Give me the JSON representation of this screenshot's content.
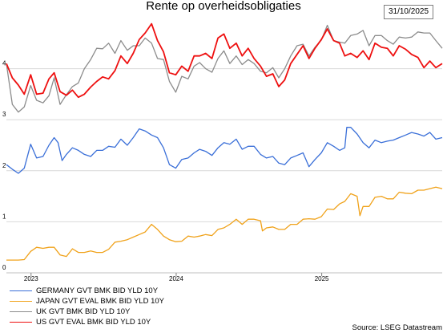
{
  "chart_data": {
    "type": "line",
    "title": "Rente op overheidsobligaties",
    "date_label": "31/10/2025",
    "source": "Source: LSEG Datastream",
    "xlabel": "",
    "ylabel": "",
    "x_ticks": [
      {
        "label": "2023",
        "x": "2023-01-01"
      },
      {
        "label": "2024",
        "x": "2024-01-01"
      },
      {
        "label": "2025",
        "x": "2025-01-01"
      }
    ],
    "xlim": [
      "2022-10-31",
      "2025-10-31"
    ],
    "ylim": [
      0,
      5.0
    ],
    "y_ticks": [
      0,
      1,
      2,
      3,
      4
    ],
    "legend_position": "bottom-left",
    "grid": "horizontal",
    "series": [
      {
        "name": "GERMANY GVT BMK BID YLD 10Y",
        "color": "#3a6fd8",
        "x": [
          "2022-10-31",
          "2022-11-15",
          "2022-11-30",
          "2022-12-15",
          "2022-12-31",
          "2023-01-15",
          "2023-01-31",
          "2023-02-15",
          "2023-02-28",
          "2023-03-10",
          "2023-03-20",
          "2023-03-31",
          "2023-04-15",
          "2023-04-30",
          "2023-05-15",
          "2023-05-31",
          "2023-06-15",
          "2023-06-30",
          "2023-07-15",
          "2023-07-31",
          "2023-08-15",
          "2023-08-31",
          "2023-09-15",
          "2023-09-30",
          "2023-10-15",
          "2023-10-31",
          "2023-11-15",
          "2023-11-30",
          "2023-12-15",
          "2023-12-31",
          "2024-01-15",
          "2024-01-31",
          "2024-02-15",
          "2024-02-29",
          "2024-03-15",
          "2024-03-31",
          "2024-04-15",
          "2024-04-30",
          "2024-05-15",
          "2024-05-31",
          "2024-06-15",
          "2024-06-30",
          "2024-07-15",
          "2024-07-31",
          "2024-08-15",
          "2024-08-31",
          "2024-09-15",
          "2024-09-30",
          "2024-10-15",
          "2024-10-31",
          "2024-11-15",
          "2024-11-30",
          "2024-12-15",
          "2024-12-31",
          "2025-01-15",
          "2025-01-31",
          "2025-02-15",
          "2025-02-28",
          "2025-03-05",
          "2025-03-15",
          "2025-03-31",
          "2025-04-15",
          "2025-04-30",
          "2025-05-15",
          "2025-05-31",
          "2025-06-15",
          "2025-06-30",
          "2025-07-15",
          "2025-07-31",
          "2025-08-15",
          "2025-08-31",
          "2025-09-15",
          "2025-09-30",
          "2025-10-15",
          "2025-10-31"
        ],
        "values": [
          2.12,
          2.03,
          1.95,
          2.05,
          2.52,
          2.25,
          2.28,
          2.5,
          2.65,
          2.55,
          2.2,
          2.32,
          2.45,
          2.4,
          2.32,
          2.28,
          2.4,
          2.4,
          2.48,
          2.46,
          2.62,
          2.5,
          2.65,
          2.82,
          2.78,
          2.7,
          2.65,
          2.45,
          2.12,
          2.05,
          2.22,
          2.25,
          2.35,
          2.42,
          2.38,
          2.3,
          2.45,
          2.55,
          2.52,
          2.62,
          2.42,
          2.48,
          2.48,
          2.32,
          2.25,
          2.28,
          2.15,
          2.12,
          2.25,
          2.3,
          2.35,
          2.08,
          2.22,
          2.35,
          2.55,
          2.48,
          2.4,
          2.45,
          2.85,
          2.85,
          2.72,
          2.55,
          2.45,
          2.6,
          2.55,
          2.58,
          2.6,
          2.65,
          2.7,
          2.75,
          2.72,
          2.68,
          2.75,
          2.62,
          2.65
        ]
      },
      {
        "name": "JAPAN GVT EVAL BMK BID YLD 10Y",
        "color": "#f0a21a",
        "x": [
          "2022-10-31",
          "2022-11-15",
          "2022-11-30",
          "2022-12-15",
          "2022-12-31",
          "2023-01-15",
          "2023-01-31",
          "2023-02-15",
          "2023-02-28",
          "2023-03-15",
          "2023-03-31",
          "2023-04-15",
          "2023-04-30",
          "2023-05-15",
          "2023-05-31",
          "2023-06-15",
          "2023-06-30",
          "2023-07-15",
          "2023-07-31",
          "2023-08-15",
          "2023-08-31",
          "2023-09-15",
          "2023-09-30",
          "2023-10-15",
          "2023-10-31",
          "2023-11-15",
          "2023-11-30",
          "2023-12-15",
          "2023-12-31",
          "2024-01-15",
          "2024-01-31",
          "2024-02-15",
          "2024-02-29",
          "2024-03-15",
          "2024-03-31",
          "2024-04-15",
          "2024-04-30",
          "2024-05-15",
          "2024-05-31",
          "2024-06-15",
          "2024-06-30",
          "2024-07-15",
          "2024-07-31",
          "2024-08-05",
          "2024-08-15",
          "2024-08-31",
          "2024-09-15",
          "2024-09-30",
          "2024-10-15",
          "2024-10-31",
          "2024-11-15",
          "2024-11-30",
          "2024-12-15",
          "2024-12-31",
          "2025-01-15",
          "2025-01-31",
          "2025-02-15",
          "2025-02-28",
          "2025-03-15",
          "2025-03-31",
          "2025-04-07",
          "2025-04-15",
          "2025-04-30",
          "2025-05-15",
          "2025-05-31",
          "2025-06-15",
          "2025-06-30",
          "2025-07-15",
          "2025-07-31",
          "2025-08-15",
          "2025-08-31",
          "2025-09-15",
          "2025-09-30",
          "2025-10-15",
          "2025-10-31"
        ],
        "values": [
          0.25,
          0.25,
          0.25,
          0.26,
          0.42,
          0.5,
          0.48,
          0.5,
          0.5,
          0.35,
          0.32,
          0.47,
          0.4,
          0.4,
          0.43,
          0.4,
          0.4,
          0.46,
          0.6,
          0.62,
          0.65,
          0.7,
          0.75,
          0.8,
          0.95,
          0.85,
          0.72,
          0.65,
          0.61,
          0.62,
          0.72,
          0.7,
          0.72,
          0.75,
          0.73,
          0.85,
          0.88,
          0.95,
          1.05,
          0.95,
          1.05,
          1.05,
          1.02,
          0.82,
          0.88,
          0.9,
          0.85,
          0.85,
          0.95,
          0.95,
          1.05,
          1.06,
          1.05,
          1.1,
          1.25,
          1.24,
          1.35,
          1.4,
          1.55,
          1.5,
          1.12,
          1.3,
          1.3,
          1.48,
          1.5,
          1.45,
          1.45,
          1.58,
          1.56,
          1.55,
          1.62,
          1.62,
          1.65,
          1.68,
          1.65
        ]
      },
      {
        "name": "UK GVT BMK BID YLD 10Y",
        "color": "#8c8c8c",
        "x": [
          "2022-10-31",
          "2022-11-15",
          "2022-11-30",
          "2022-12-15",
          "2022-12-31",
          "2023-01-15",
          "2023-01-31",
          "2023-02-15",
          "2023-02-28",
          "2023-03-15",
          "2023-03-31",
          "2023-04-15",
          "2023-04-30",
          "2023-05-15",
          "2023-05-31",
          "2023-06-15",
          "2023-06-30",
          "2023-07-15",
          "2023-07-31",
          "2023-08-15",
          "2023-08-31",
          "2023-09-15",
          "2023-09-30",
          "2023-10-15",
          "2023-10-31",
          "2023-11-15",
          "2023-11-30",
          "2023-12-15",
          "2023-12-31",
          "2024-01-15",
          "2024-01-31",
          "2024-02-15",
          "2024-02-29",
          "2024-03-15",
          "2024-03-31",
          "2024-04-15",
          "2024-04-30",
          "2024-05-15",
          "2024-05-31",
          "2024-06-15",
          "2024-06-30",
          "2024-07-15",
          "2024-07-31",
          "2024-08-15",
          "2024-08-31",
          "2024-09-15",
          "2024-09-30",
          "2024-10-15",
          "2024-10-31",
          "2024-11-15",
          "2024-11-30",
          "2024-12-15",
          "2024-12-31",
          "2025-01-15",
          "2025-01-31",
          "2025-02-15",
          "2025-02-28",
          "2025-03-15",
          "2025-03-31",
          "2025-04-15",
          "2025-04-30",
          "2025-05-15",
          "2025-05-31",
          "2025-06-15",
          "2025-06-30",
          "2025-07-15",
          "2025-07-31",
          "2025-08-15",
          "2025-08-31",
          "2025-09-15",
          "2025-09-30",
          "2025-10-15",
          "2025-10-31"
        ],
        "values": [
          4.1,
          3.3,
          3.15,
          3.25,
          3.67,
          3.38,
          3.33,
          3.47,
          3.82,
          3.3,
          3.49,
          3.65,
          3.72,
          4.0,
          4.18,
          4.4,
          4.39,
          4.5,
          4.3,
          4.55,
          4.36,
          4.45,
          4.45,
          4.6,
          4.5,
          4.2,
          4.18,
          3.75,
          3.54,
          3.85,
          3.8,
          4.05,
          4.12,
          4.0,
          3.93,
          4.2,
          4.35,
          4.1,
          4.25,
          4.08,
          4.18,
          4.1,
          3.95,
          3.92,
          4.02,
          3.82,
          4.0,
          4.25,
          4.45,
          4.48,
          4.25,
          4.42,
          4.56,
          4.85,
          4.55,
          4.52,
          4.5,
          4.65,
          4.68,
          4.75,
          4.45,
          4.65,
          4.65,
          4.55,
          4.48,
          4.62,
          4.6,
          4.62,
          4.72,
          4.7,
          4.7,
          4.55,
          4.4
        ]
      },
      {
        "name": "US GVT EVAL BMK BID YLD 10Y",
        "color": "#ee1010",
        "x": [
          "2022-10-31",
          "2022-11-15",
          "2022-11-30",
          "2022-12-15",
          "2022-12-31",
          "2023-01-15",
          "2023-01-31",
          "2023-02-15",
          "2023-02-28",
          "2023-03-15",
          "2023-03-31",
          "2023-04-15",
          "2023-04-30",
          "2023-05-15",
          "2023-05-31",
          "2023-06-15",
          "2023-06-30",
          "2023-07-15",
          "2023-07-31",
          "2023-08-15",
          "2023-08-31",
          "2023-09-15",
          "2023-09-30",
          "2023-10-15",
          "2023-10-31",
          "2023-11-15",
          "2023-11-30",
          "2023-12-15",
          "2023-12-31",
          "2024-01-15",
          "2024-01-31",
          "2024-02-15",
          "2024-02-29",
          "2024-03-15",
          "2024-03-31",
          "2024-04-15",
          "2024-04-30",
          "2024-05-15",
          "2024-05-31",
          "2024-06-15",
          "2024-06-30",
          "2024-07-15",
          "2024-07-31",
          "2024-08-15",
          "2024-08-31",
          "2024-09-15",
          "2024-09-30",
          "2024-10-15",
          "2024-10-31",
          "2024-11-15",
          "2024-11-30",
          "2024-12-15",
          "2024-12-31",
          "2025-01-15",
          "2025-01-31",
          "2025-02-15",
          "2025-02-28",
          "2025-03-15",
          "2025-03-31",
          "2025-04-15",
          "2025-04-30",
          "2025-05-15",
          "2025-05-31",
          "2025-06-15",
          "2025-06-30",
          "2025-07-15",
          "2025-07-31",
          "2025-08-15",
          "2025-08-31",
          "2025-09-15",
          "2025-09-30",
          "2025-10-15",
          "2025-10-31"
        ],
        "values": [
          4.1,
          3.82,
          3.68,
          3.5,
          3.88,
          3.5,
          3.52,
          3.8,
          3.92,
          3.55,
          3.48,
          3.58,
          3.44,
          3.5,
          3.64,
          3.75,
          3.84,
          3.8,
          3.96,
          4.25,
          4.1,
          4.3,
          4.57,
          4.7,
          4.88,
          4.55,
          4.33,
          3.92,
          3.88,
          4.05,
          3.95,
          4.25,
          4.25,
          4.3,
          4.2,
          4.6,
          4.68,
          4.4,
          4.5,
          4.25,
          4.4,
          4.2,
          4.05,
          3.85,
          3.9,
          3.65,
          3.78,
          4.1,
          4.28,
          4.45,
          4.2,
          4.4,
          4.57,
          4.78,
          4.55,
          4.5,
          4.25,
          4.3,
          4.22,
          4.35,
          4.18,
          4.5,
          4.42,
          4.4,
          4.25,
          4.45,
          4.38,
          4.28,
          4.22,
          4.02,
          4.15,
          4.02,
          4.1
        ]
      }
    ]
  }
}
